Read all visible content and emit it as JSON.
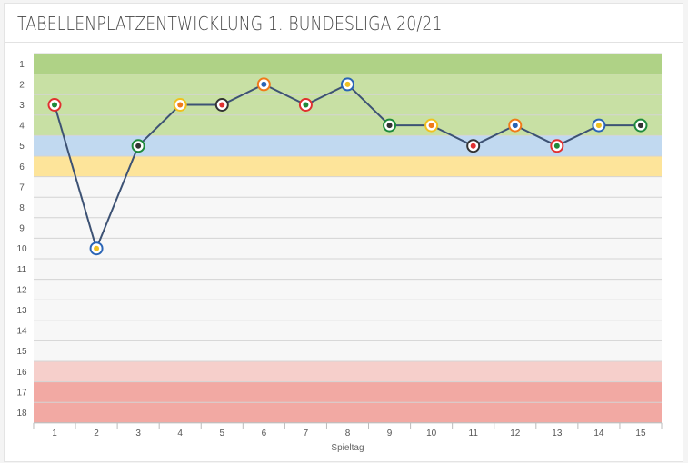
{
  "chart_data": {
    "type": "line",
    "title": "TABELLENPLATZENTWICKLUNG 1. BUNDESLIGA 20/21",
    "xlabel": "Spieltag",
    "ylabel": "",
    "x": [
      1,
      2,
      3,
      4,
      5,
      6,
      7,
      8,
      9,
      10,
      11,
      12,
      13,
      14,
      15
    ],
    "y_ticks": [
      1,
      2,
      3,
      4,
      5,
      6,
      7,
      8,
      9,
      10,
      11,
      12,
      13,
      14,
      15,
      16,
      17,
      18
    ],
    "ylim": [
      1,
      18
    ],
    "y_inverted": true,
    "series": [
      {
        "values": [
          3,
          10,
          5,
          3,
          3,
          2,
          3,
          2,
          4,
          4,
          5,
          4,
          5,
          4,
          4
        ],
        "color": "#3d5274",
        "marker_icons": [
          "gladbach-crest-icon",
          "augsburg-crest-icon",
          "freiburg-crest-icon",
          "hoffenheim-crest-icon",
          "schalke-crest-icon",
          "bielefeld-crest-icon",
          "bayern-crest-icon",
          "hertha-crest-icon",
          "koeln-crest-icon",
          "frankfurt-crest-icon",
          "stuttgart-crest-icon",
          "bremen-crest-icon",
          "union-crest-icon",
          "wolfsburg-crest-icon",
          "leipzig-crest-icon"
        ]
      }
    ],
    "bands": [
      {
        "from": 1,
        "to": 1,
        "color": "#afd286"
      },
      {
        "from": 2,
        "to": 4,
        "color": "#c8e0a4"
      },
      {
        "from": 5,
        "to": 5,
        "color": "#c1d9f0"
      },
      {
        "from": 6,
        "to": 6,
        "color": "#fde49a"
      },
      {
        "from": 7,
        "to": 15,
        "color": "#f7f7f7"
      },
      {
        "from": 16,
        "to": 16,
        "color": "#f6cfcb"
      },
      {
        "from": 17,
        "to": 18,
        "color": "#f2a9a3"
      }
    ],
    "grid": true
  }
}
